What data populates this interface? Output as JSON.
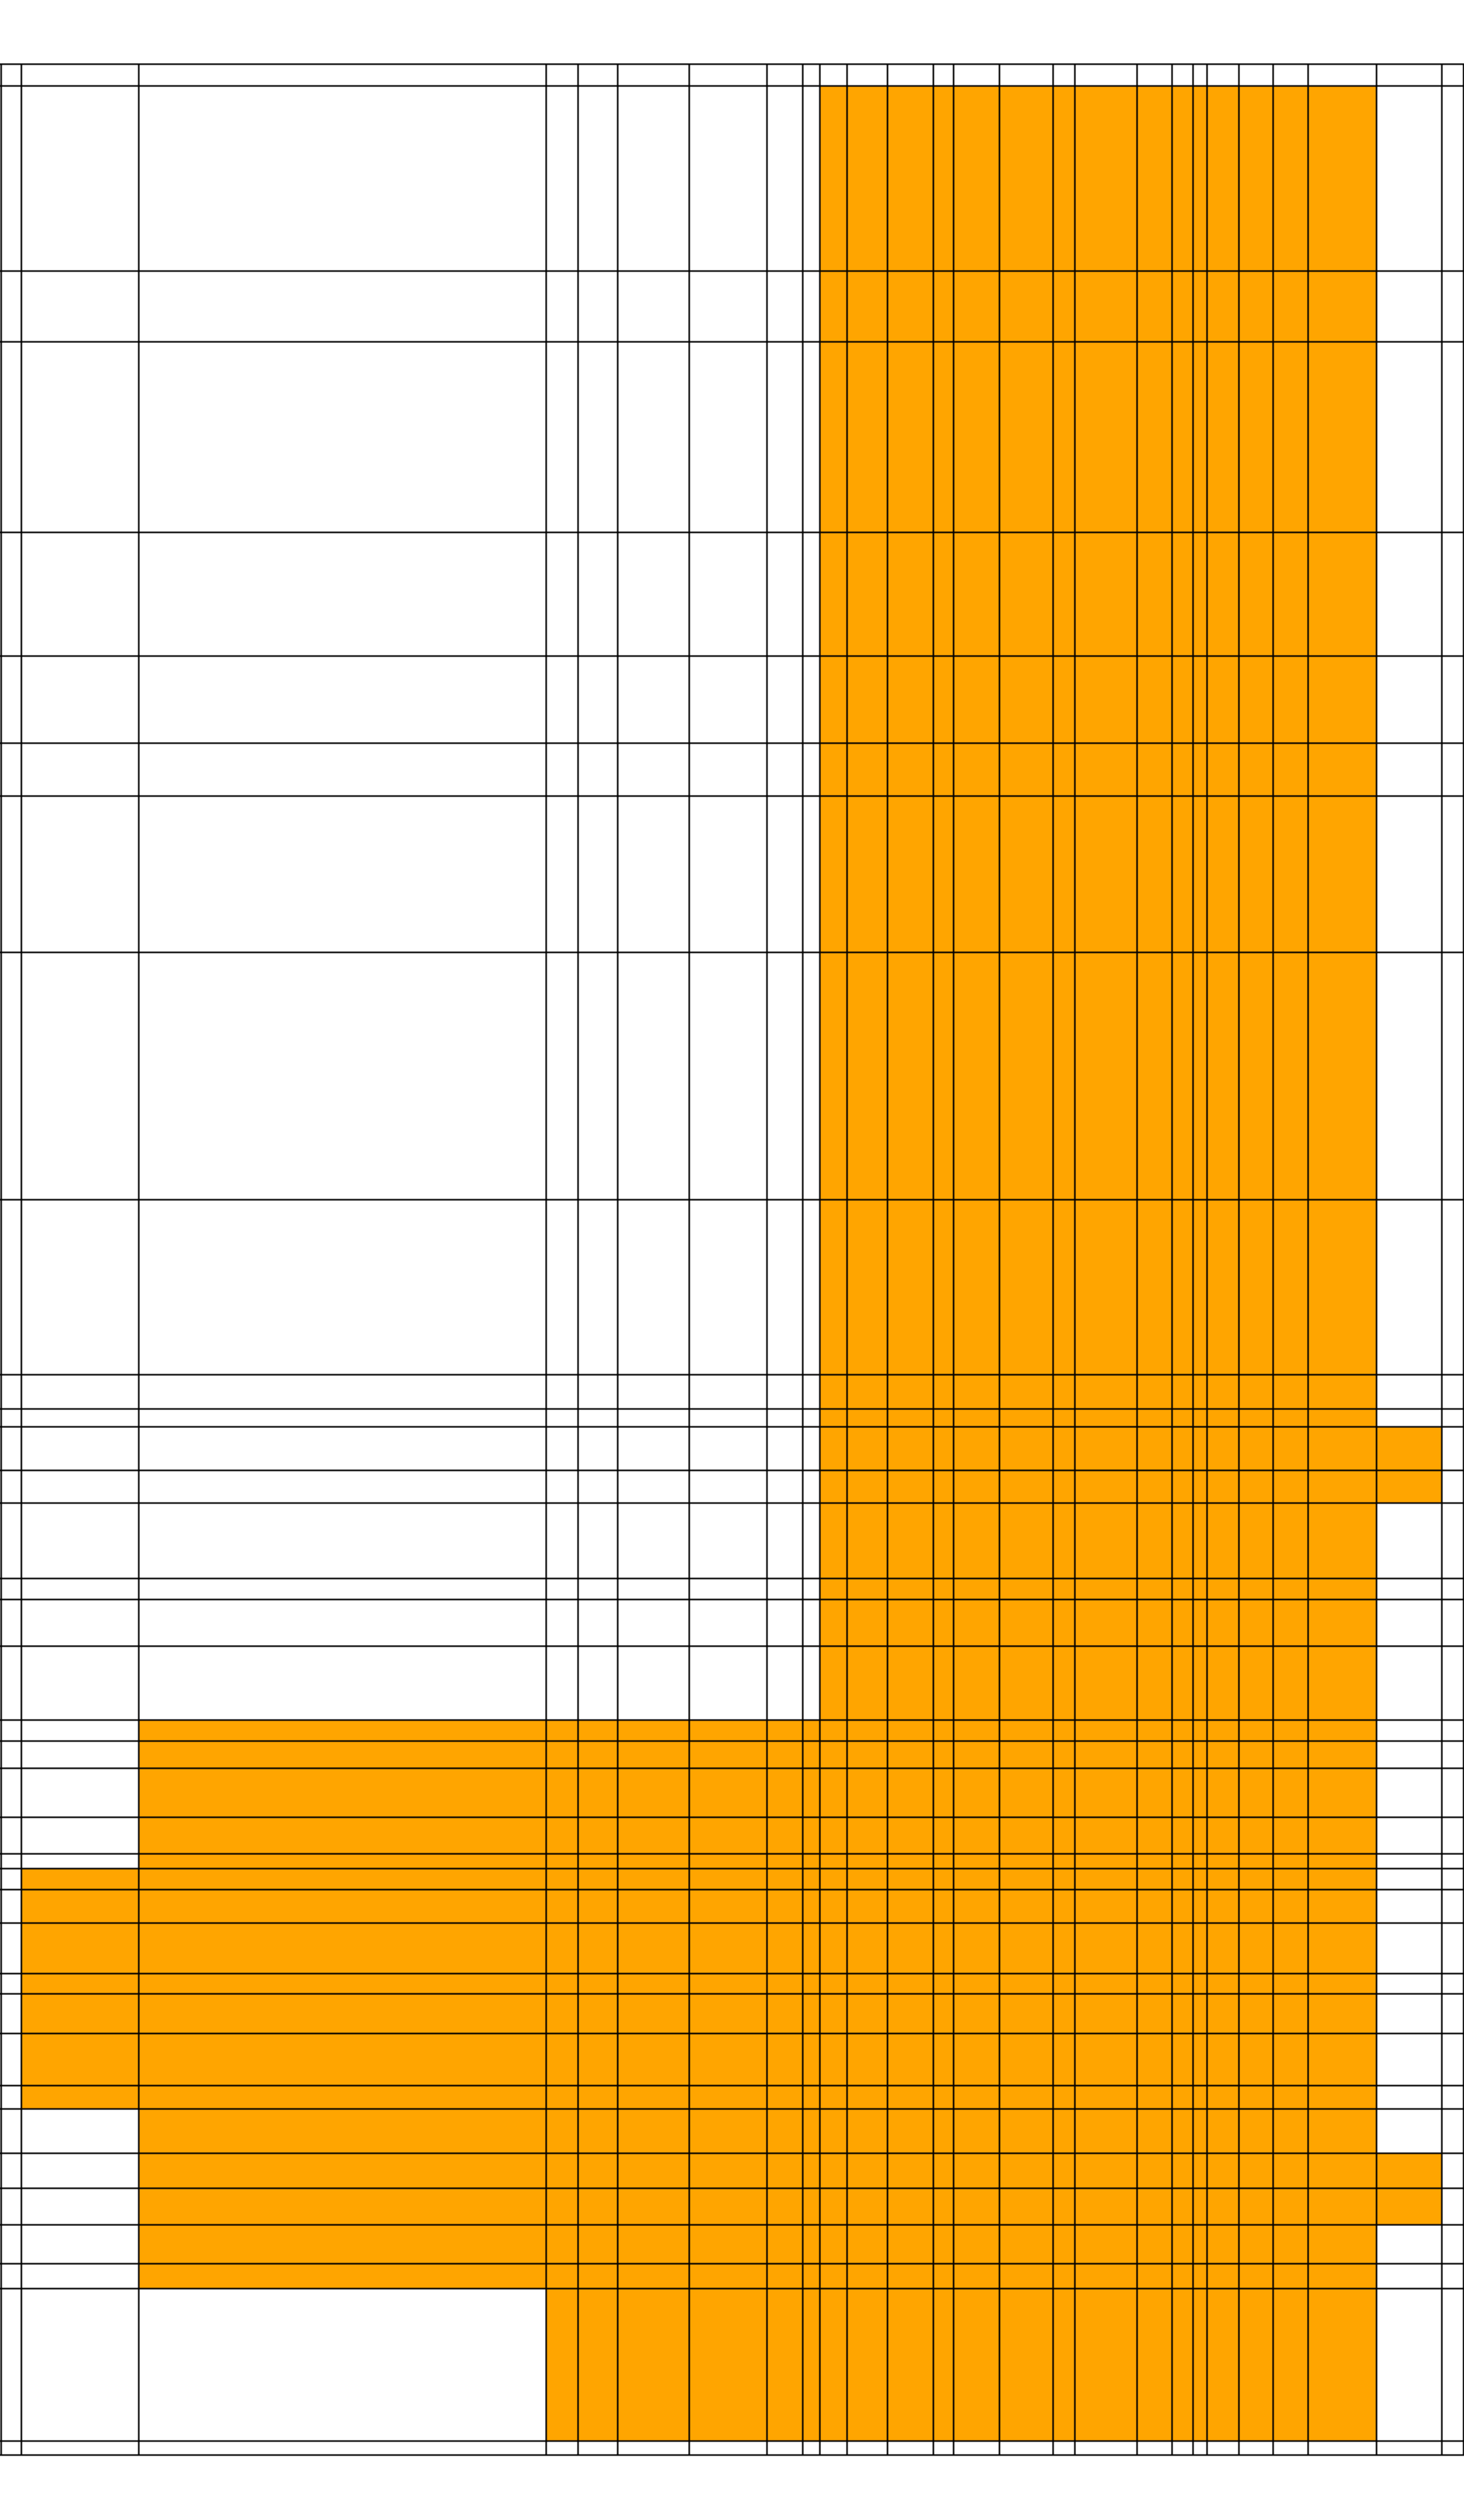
{
  "figure": {
    "kind": "grid-diagram",
    "text_labels": []
  },
  "colors": {
    "background": "#ffffff",
    "highlight": "#FFA500",
    "line": "#000000"
  },
  "legend": {
    "visible": false
  }
}
